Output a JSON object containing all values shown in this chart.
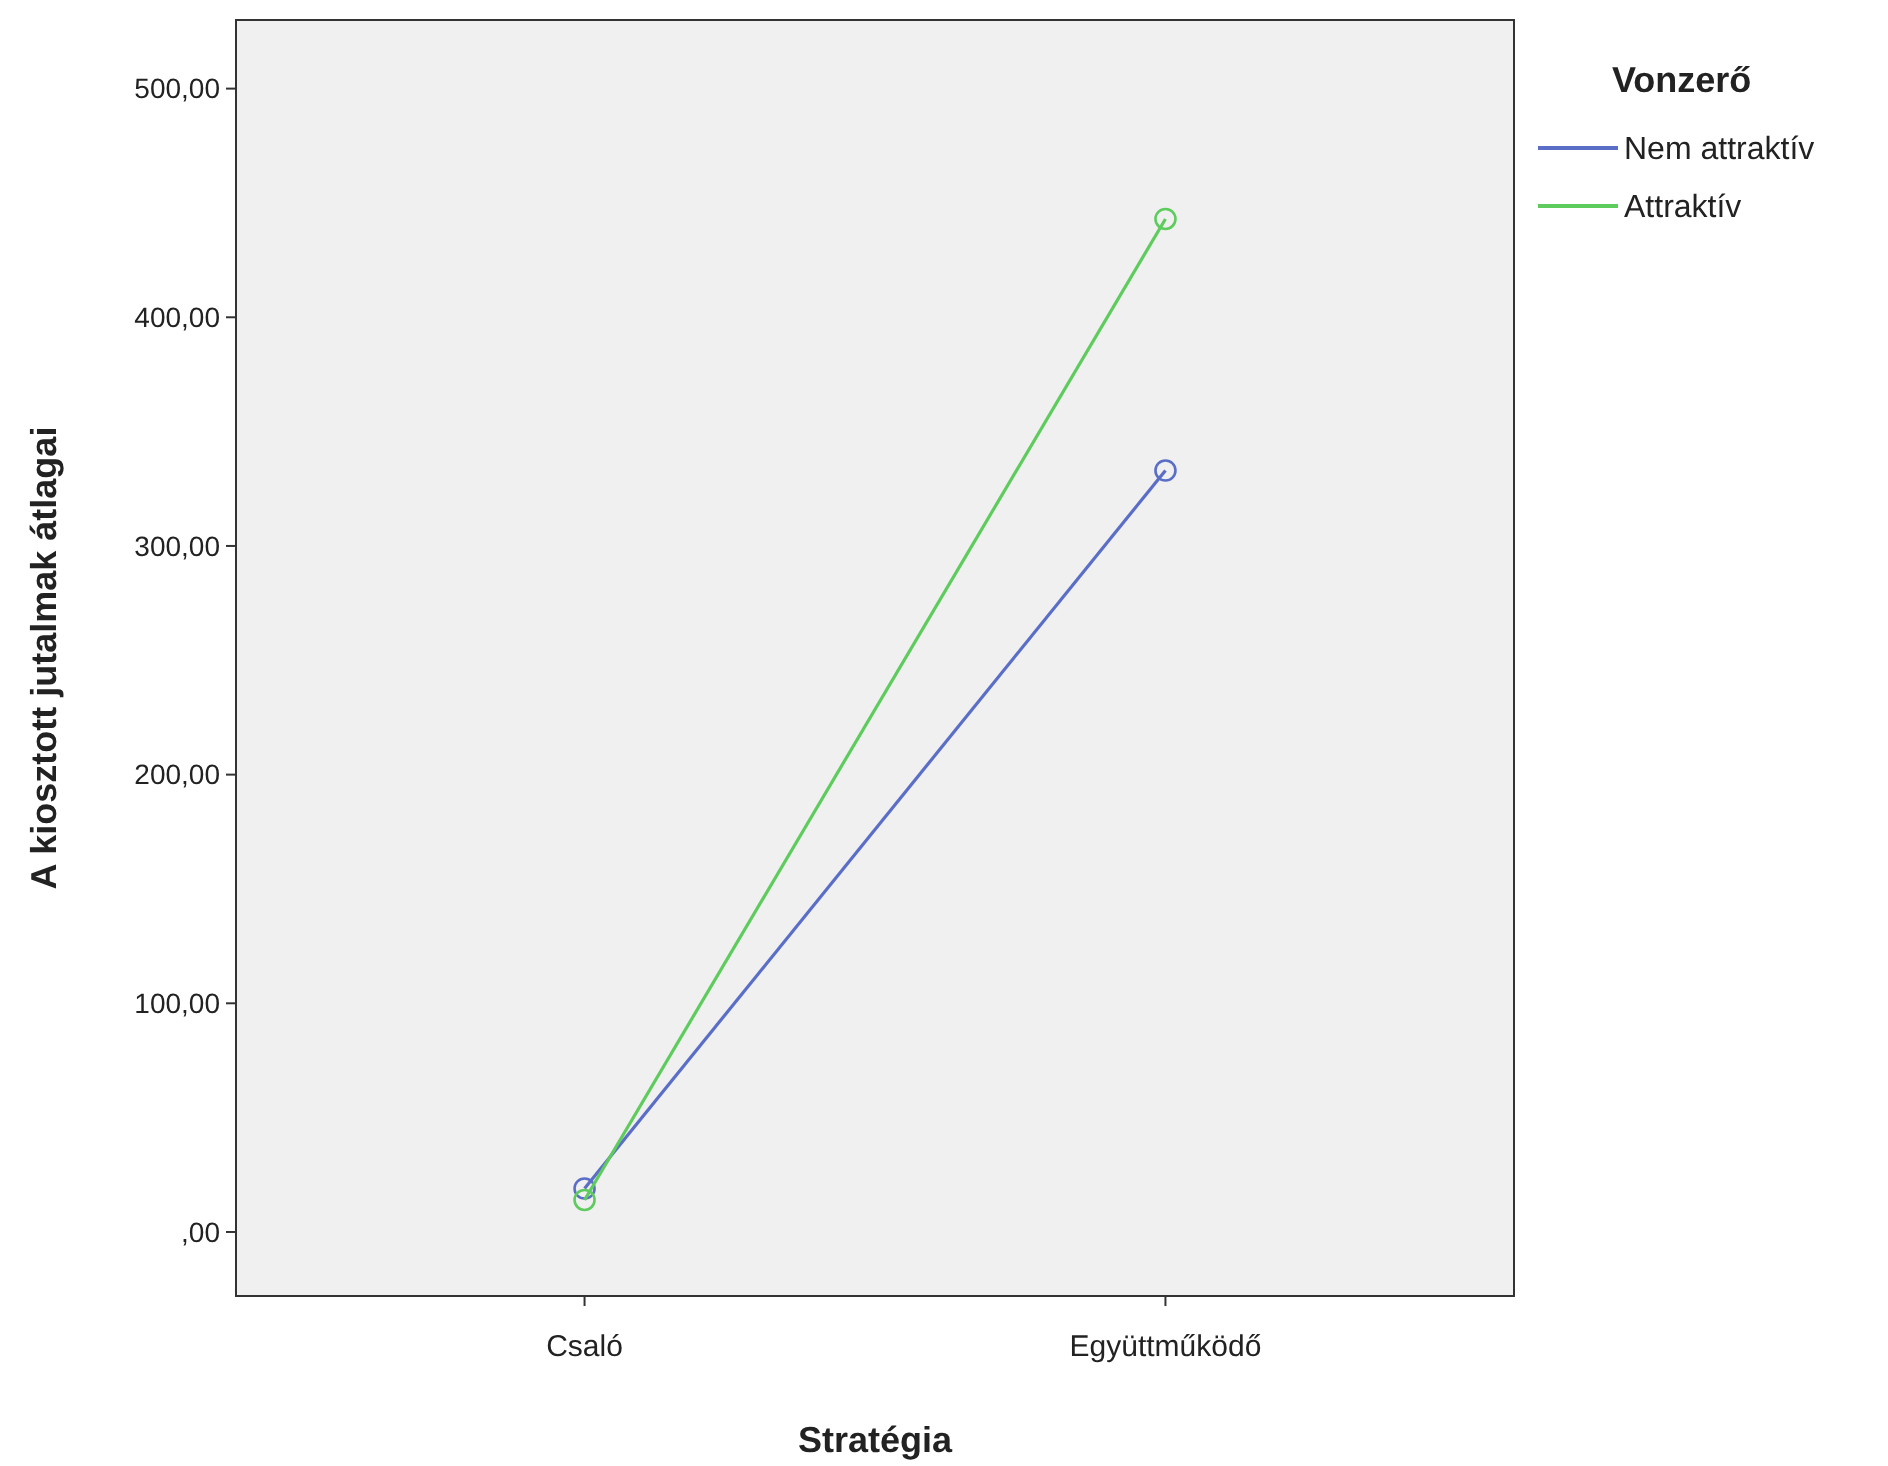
{
  "chart_data": {
    "type": "line",
    "xlabel": "Stratégia",
    "ylabel": "A kiosztott jutalmak átlagai",
    "legend_title": "Vonzerő",
    "categories": [
      "Csaló",
      "Együttműködő"
    ],
    "series": [
      {
        "name": "Nem attraktív",
        "color": "#5a6ec8",
        "values": [
          19,
          333
        ]
      },
      {
        "name": "Attraktív",
        "color": "#5dcc5d",
        "values": [
          14,
          443
        ]
      }
    ],
    "ylim": [
      -28,
      530
    ],
    "yticks": [
      {
        "value": 0,
        "label": ",00"
      },
      {
        "value": 100,
        "label": "100,00"
      },
      {
        "value": 200,
        "label": "200,00"
      },
      {
        "value": 300,
        "label": "300,00"
      },
      {
        "value": 400,
        "label": "400,00"
      },
      {
        "value": 500,
        "label": "500,00"
      }
    ],
    "grid": false,
    "legend": "top right",
    "marker": "circle",
    "line_style": "solid"
  }
}
